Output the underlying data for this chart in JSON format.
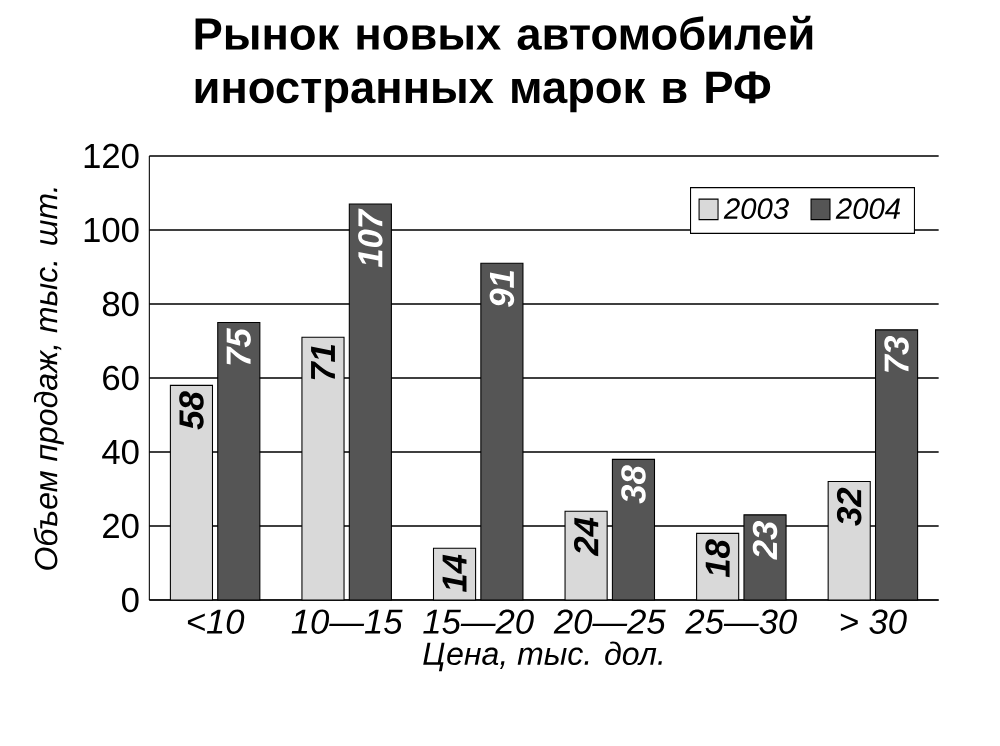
{
  "chart_data": {
    "type": "bar",
    "title": "Рынок новых автомобилей\nиностранных марок в РФ",
    "xlabel": "Цена, тыс. дол.",
    "ylabel": "Объем продаж, тыс. шт.",
    "categories": [
      "<10",
      "10—15",
      "15—20",
      "20—25",
      "25—30",
      "> 30"
    ],
    "series": [
      {
        "name": "2003",
        "color": "#d9d9d9",
        "values": [
          58,
          71,
          14,
          24,
          18,
          32
        ]
      },
      {
        "name": "2004",
        "color": "#555555",
        "values": [
          75,
          107,
          91,
          38,
          23,
          73
        ]
      }
    ],
    "ylim": [
      0,
      120
    ],
    "yticks": [
      0,
      20,
      40,
      60,
      80,
      100,
      120
    ],
    "grid": "y",
    "legend": "top right",
    "data_labels": true
  }
}
